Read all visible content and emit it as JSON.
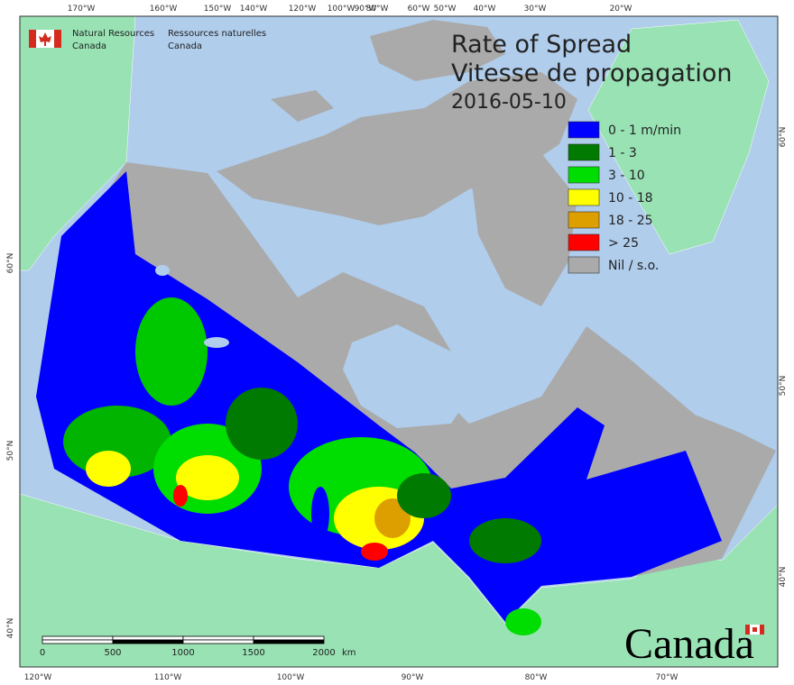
{
  "header": {
    "department_en": [
      "Natural Resources",
      "Canada"
    ],
    "department_fr": [
      "Ressources naturelles",
      "Canada"
    ]
  },
  "title": [
    "Rate of Spread",
    "Vitesse de propagation",
    "2016-05-10"
  ],
  "legend": {
    "items": [
      {
        "label": "0 - 1 m/min",
        "color": "#0000ff"
      },
      {
        "label": "1 - 3",
        "color": "#007a00"
      },
      {
        "label": "3 - 10",
        "color": "#00dd00"
      },
      {
        "label": "10 - 18",
        "color": "#ffff00"
      },
      {
        "label": "18 - 25",
        "color": "#dd9f00"
      },
      {
        "label": "> 25",
        "color": "#ff0000"
      },
      {
        "label": "Nil / s.o.",
        "color": "#aaaaaa"
      }
    ]
  },
  "scale_bar": {
    "labels": [
      "0",
      "500",
      "1000",
      "1500",
      "2000"
    ],
    "unit": "km"
  },
  "graticule": {
    "top": [
      "170°W",
      "160°W",
      "150°W",
      "140°W",
      "120°W",
      "100°W",
      "90°W",
      "80°W",
      "60°W",
      "50°W",
      "40°W",
      "30°W",
      "20°W"
    ],
    "bottom": [
      "120°W",
      "110°W",
      "100°W",
      "90°W",
      "80°W",
      "70°W"
    ],
    "left": [
      "60°N",
      "50°N",
      "40°N"
    ],
    "right": [
      "60°N",
      "50°N",
      "40°N"
    ]
  },
  "wordmark": "Canada"
}
